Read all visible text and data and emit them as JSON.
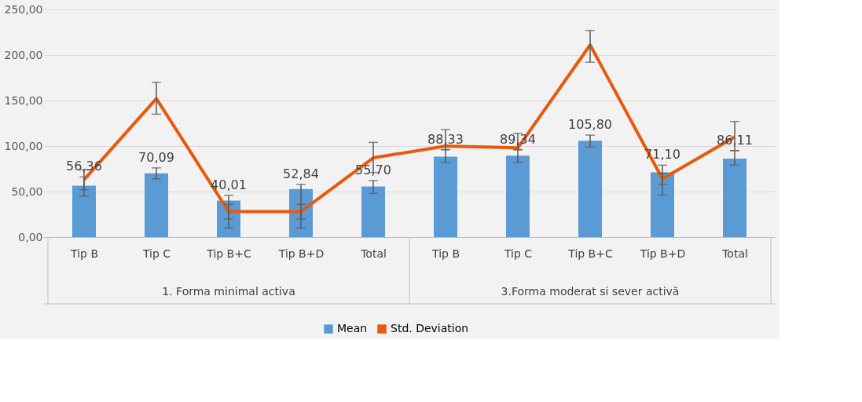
{
  "chart_data": {
    "type": "bar",
    "categories": [
      "Tip B",
      "Tip C",
      "Tip B+C",
      "Tip B+D",
      "Total",
      "Tip B",
      "Tip C",
      "Tip B+C",
      "Tip B+D",
      "Total"
    ],
    "annotations": [
      "1. Forma minimal activa",
      "3.Forma moderat si sever activă"
    ],
    "series": [
      {
        "name": "Mean",
        "color": "#5b9bd5",
        "values": [
          56.36,
          70.09,
          40.01,
          52.84,
          55.7,
          88.33,
          89.34,
          105.8,
          71.1,
          86.11
        ],
        "value_labels": [
          "56,36",
          "70,09",
          "40,01",
          "52,84",
          "55,70",
          "88,33",
          "89,34",
          "105,80",
          "71,10",
          "86,11"
        ],
        "errors": [
          [
            45,
            66
          ],
          [
            64,
            76
          ],
          [
            10,
            46
          ],
          [
            10,
            58
          ],
          [
            48,
            62
          ],
          [
            82,
            96
          ],
          [
            82,
            96
          ],
          [
            99,
            112
          ],
          [
            46,
            79
          ],
          [
            79,
            95
          ]
        ]
      },
      {
        "name": "Std. Deviation",
        "type": "line",
        "color": "#e8590c",
        "values": [
          63,
          152,
          28,
          28,
          87,
          100,
          98,
          211,
          64,
          110
        ],
        "errors": [
          [
            52,
            74
          ],
          [
            135,
            170
          ],
          [
            20,
            36
          ],
          [
            20,
            36
          ],
          [
            71,
            104
          ],
          [
            96,
            118
          ],
          [
            96,
            114
          ],
          [
            192,
            227
          ],
          [
            58,
            70
          ],
          [
            95,
            127
          ]
        ]
      }
    ],
    "ylim": [
      0,
      250
    ],
    "yticks": [
      {
        "value": 0,
        "label": "0,00"
      },
      {
        "value": 50,
        "label": "50,00"
      },
      {
        "value": 100,
        "label": "100,00"
      },
      {
        "value": 150,
        "label": "150,00"
      },
      {
        "value": 200,
        "label": "200,00"
      },
      {
        "value": 250,
        "label": "250,00"
      }
    ],
    "grid": "y",
    "legend": "bottom",
    "marker": "none",
    "line_style": "solid"
  }
}
